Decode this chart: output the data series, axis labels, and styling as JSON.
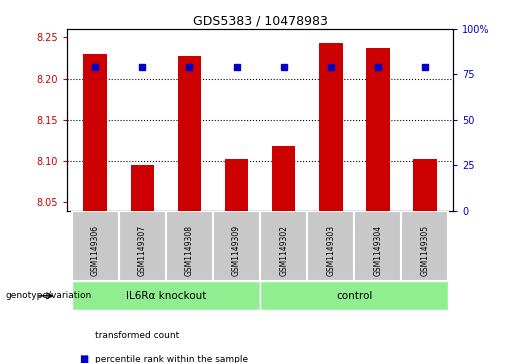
{
  "title": "GDS5383 / 10478983",
  "samples": [
    "GSM1149306",
    "GSM1149307",
    "GSM1149308",
    "GSM1149309",
    "GSM1149302",
    "GSM1149303",
    "GSM1149304",
    "GSM1149305"
  ],
  "transformed_count": [
    8.23,
    8.095,
    8.227,
    8.102,
    8.118,
    8.243,
    8.237,
    8.102
  ],
  "percentile_rank": [
    79,
    79,
    79,
    79,
    79,
    79,
    79,
    79
  ],
  "groups": [
    {
      "label": "IL6Rα knockout",
      "indices": [
        0,
        1,
        2,
        3
      ],
      "color": "#90EE90"
    },
    {
      "label": "control",
      "indices": [
        4,
        5,
        6,
        7
      ],
      "color": "#90EE90"
    }
  ],
  "ylim_left": [
    8.04,
    8.26
  ],
  "ylim_right": [
    0,
    100
  ],
  "yticks_left": [
    8.05,
    8.1,
    8.15,
    8.2,
    8.25
  ],
  "yticks_right": [
    0,
    25,
    50,
    75,
    100
  ],
  "bar_color": "#CC0000",
  "dot_color": "#0000CC",
  "bg_color": "#C8C8C8",
  "legend_labels": [
    "transformed count",
    "percentile rank within the sample"
  ],
  "legend_colors": [
    "#CC0000",
    "#0000CC"
  ],
  "group_label_prefix": "genotype/variation",
  "ylabel_left_color": "#CC0000",
  "ylabel_right_color": "#0000CC",
  "bar_width": 0.5
}
